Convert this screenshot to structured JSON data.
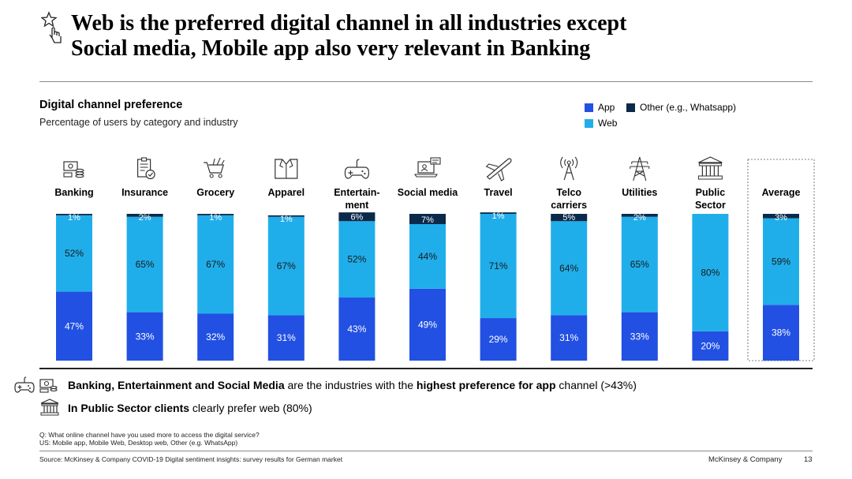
{
  "title": {
    "line1": "Web is the preferred digital channel in all industries except",
    "line2": "Social media, Mobile app also very relevant in Banking"
  },
  "subtitle": "Digital channel preference",
  "subtitle2": "Percentage of users by category and industry",
  "legend": {
    "app": "App",
    "web": "Web",
    "other": "Other (e.g., Whatsapp)"
  },
  "colors": {
    "app": "#2250e3",
    "web": "#20aeea",
    "other": "#0b2a4a"
  },
  "chart_data": {
    "type": "bar",
    "stacked": true,
    "title": "Digital channel preference",
    "subtitle": "Percentage of users by category and industry",
    "ylim": [
      0,
      100
    ],
    "categories": [
      {
        "label": "Banking",
        "icon": "banking-icon",
        "highlight": false
      },
      {
        "label": "Insurance",
        "icon": "insurance-icon",
        "highlight": false
      },
      {
        "label": "Grocery",
        "icon": "grocery-cart-icon",
        "highlight": false
      },
      {
        "label": "Apparel",
        "icon": "apparel-shirt-icon",
        "highlight": false
      },
      {
        "label": "Entertain-\nment",
        "icon": "gamepad-icon",
        "highlight": false
      },
      {
        "label": "Social media",
        "icon": "social-laptop-icon",
        "highlight": false
      },
      {
        "label": "Travel",
        "icon": "airplane-icon",
        "highlight": false
      },
      {
        "label": "Telco\ncarriers",
        "icon": "antenna-icon",
        "highlight": false
      },
      {
        "label": "Utilities",
        "icon": "power-pylon-icon",
        "highlight": false
      },
      {
        "label": "Public\nSector",
        "icon": "public-building-icon",
        "highlight": false
      },
      {
        "label": "Average",
        "icon": "",
        "highlight": true
      }
    ],
    "series": [
      {
        "name": "App",
        "values": [
          47,
          33,
          32,
          31,
          43,
          49,
          29,
          31,
          33,
          20,
          38
        ]
      },
      {
        "name": "Web",
        "values": [
          52,
          65,
          67,
          67,
          52,
          44,
          71,
          64,
          65,
          80,
          59
        ]
      },
      {
        "name": "Other (e.g., Whatsapp)",
        "values": [
          1,
          2,
          1,
          1,
          6,
          7,
          1,
          5,
          2,
          0,
          3
        ]
      }
    ],
    "labels": {
      "App": [
        "47%",
        "33%",
        "32%",
        "31%",
        "43%",
        "49%",
        "29%",
        "31%",
        "33%",
        "20%",
        "38%"
      ],
      "Web": [
        "52%",
        "65%",
        "67%",
        "67%",
        "52%",
        "44%",
        "71%",
        "64%",
        "65%",
        "80%",
        "59%"
      ],
      "Other (e.g., Whatsapp)": [
        "1%",
        "2%",
        "1%",
        "1%",
        "6%",
        "7%",
        "1%",
        "5%",
        "2%",
        "",
        "3%"
      ]
    }
  },
  "takeaways": {
    "t1_bold1": "Banking, Entertainment and Social Media",
    "t1_text1": " are the industries with the ",
    "t1_bold2": "highest preference for app",
    "t1_text2": " channel (>43%)",
    "t2_bold": "In Public Sector clients",
    "t2_text": " clearly prefer web (80%)"
  },
  "notes": {
    "q": "Q: What online channel have you used more to access the digital service?",
    "us": "US: Mobile app, Mobile Web, Desktop web, Other (e.g. WhatsApp)"
  },
  "footer": {
    "source": "Source: McKinsey & Company COVID-19 Digital sentiment insights: survey results for German market",
    "brand": "McKinsey & Company",
    "page": "13"
  }
}
